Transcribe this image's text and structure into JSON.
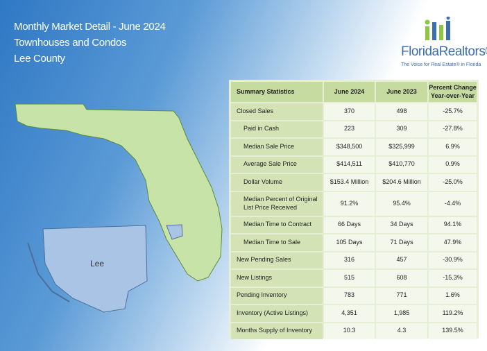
{
  "header": {
    "title": "Monthly Market Detail - June 2024",
    "subtitle": "Townhouses and Condos",
    "county": "Lee County"
  },
  "logo": {
    "name": "FloridaRealtors®",
    "tagline": "The Voice for Real Estate® in Florida"
  },
  "map": {
    "label": "Lee"
  },
  "table": {
    "columns": [
      "Summary Statistics",
      "June 2024",
      "June 2023",
      "Percent Change Year-over-Year"
    ],
    "rows": [
      [
        "Closed Sales",
        "370",
        "498",
        "-25.7%"
      ],
      [
        "Paid in Cash",
        "223",
        "309",
        "-27.8%"
      ],
      [
        "Median Sale Price",
        "$348,500",
        "$325,999",
        "6.9%"
      ],
      [
        "Average Sale Price",
        "$414,511",
        "$410,770",
        "0.9%"
      ],
      [
        "Dollar Volume",
        "$153.4 Million",
        "$204.6 Million",
        "-25.0%"
      ],
      [
        "Median Percent of Original List Price Received",
        "91.2%",
        "95.4%",
        "-4.4%"
      ],
      [
        "Median Time to Contract",
        "66 Days",
        "34 Days",
        "94.1%"
      ],
      [
        "Median Time to Sale",
        "105 Days",
        "71 Days",
        "47.9%"
      ],
      [
        "New Pending Sales",
        "316",
        "457",
        "-30.9%"
      ],
      [
        "New Listings",
        "515",
        "608",
        "-15.3%"
      ],
      [
        "Pending Inventory",
        "783",
        "771",
        "1.6%"
      ],
      [
        "Inventory (Active Listings)",
        "4,351",
        "1,985",
        "119.2%"
      ],
      [
        "Months Supply of Inventory",
        "10.3",
        "4.3",
        "139.5%"
      ]
    ]
  }
}
